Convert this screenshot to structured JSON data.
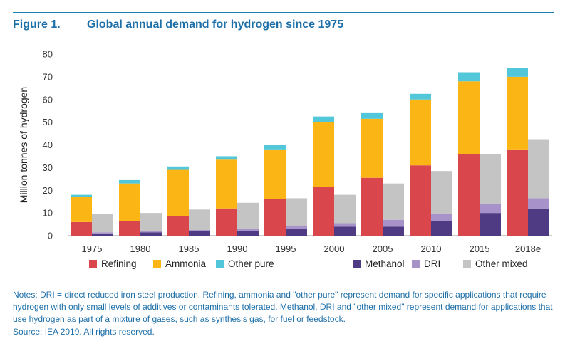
{
  "figure": {
    "label": "Figure 1.",
    "title": "Global annual demand for hydrogen since 1975"
  },
  "notes": "Notes: DRI = direct reduced iron steel production. Refining, ammonia and \"other pure\" represent demand for specific applications that require hydrogen with only small levels of additives or contaminants tolerated. Methanol, DRI and \"other mixed\" represent demand for applications that use hydrogen as part of a mixture of gases, such as synthesis gas, for fuel or feedstock.",
  "source": "Source: IEA 2019. All rights reserved.",
  "colors": {
    "refining": "#d9464b",
    "ammonia": "#fbb616",
    "other_pure": "#51c7d9",
    "methanol": "#4f3a84",
    "dri": "#a793c9",
    "other_mixed": "#c4c4c4"
  },
  "chart_data": {
    "type": "bar",
    "stacked": true,
    "grouped": true,
    "title": "",
    "xlabel": "",
    "ylabel": "Million tonnes of hydrogen",
    "ylim": [
      0,
      80
    ],
    "yticks": [
      0,
      10,
      20,
      30,
      40,
      50,
      60,
      70,
      80
    ],
    "grid": false,
    "legend_position": "bottom",
    "categories": [
      "1975",
      "1980",
      "1985",
      "1990",
      "1995",
      "2000",
      "2005",
      "2010",
      "2015",
      "2018e"
    ],
    "groups": [
      {
        "name": "pure",
        "series": [
          {
            "name": "Refining",
            "color_key": "refining",
            "values": [
              6,
              6.5,
              8.5,
              12,
              16,
              21.5,
              25.5,
              31,
              36,
              38
            ]
          },
          {
            "name": "Ammonia",
            "color_key": "ammonia",
            "values": [
              11,
              16.5,
              20.5,
              21.5,
              22,
              28.5,
              26,
              29,
              32,
              32
            ]
          },
          {
            "name": "Other pure",
            "color_key": "other_pure",
            "values": [
              1,
              1.5,
              1.5,
              1.5,
              2,
              2.5,
              2.5,
              2.5,
              4,
              4
            ]
          }
        ]
      },
      {
        "name": "mixed",
        "series": [
          {
            "name": "Methanol",
            "color_key": "methanol",
            "values": [
              1,
              1.5,
              2,
              2,
              3,
              4,
              4,
              6.5,
              10,
              12
            ]
          },
          {
            "name": "DRI",
            "color_key": "dri",
            "values": [
              0.5,
              0.5,
              0.5,
              1,
              1.5,
              1.5,
              3,
              3,
              4,
              4.5
            ]
          },
          {
            "name": "Other mixed",
            "color_key": "other_mixed",
            "values": [
              8,
              8,
              9,
              11.5,
              12,
              12.5,
              16,
              19,
              22,
              26
            ]
          }
        ]
      }
    ]
  }
}
